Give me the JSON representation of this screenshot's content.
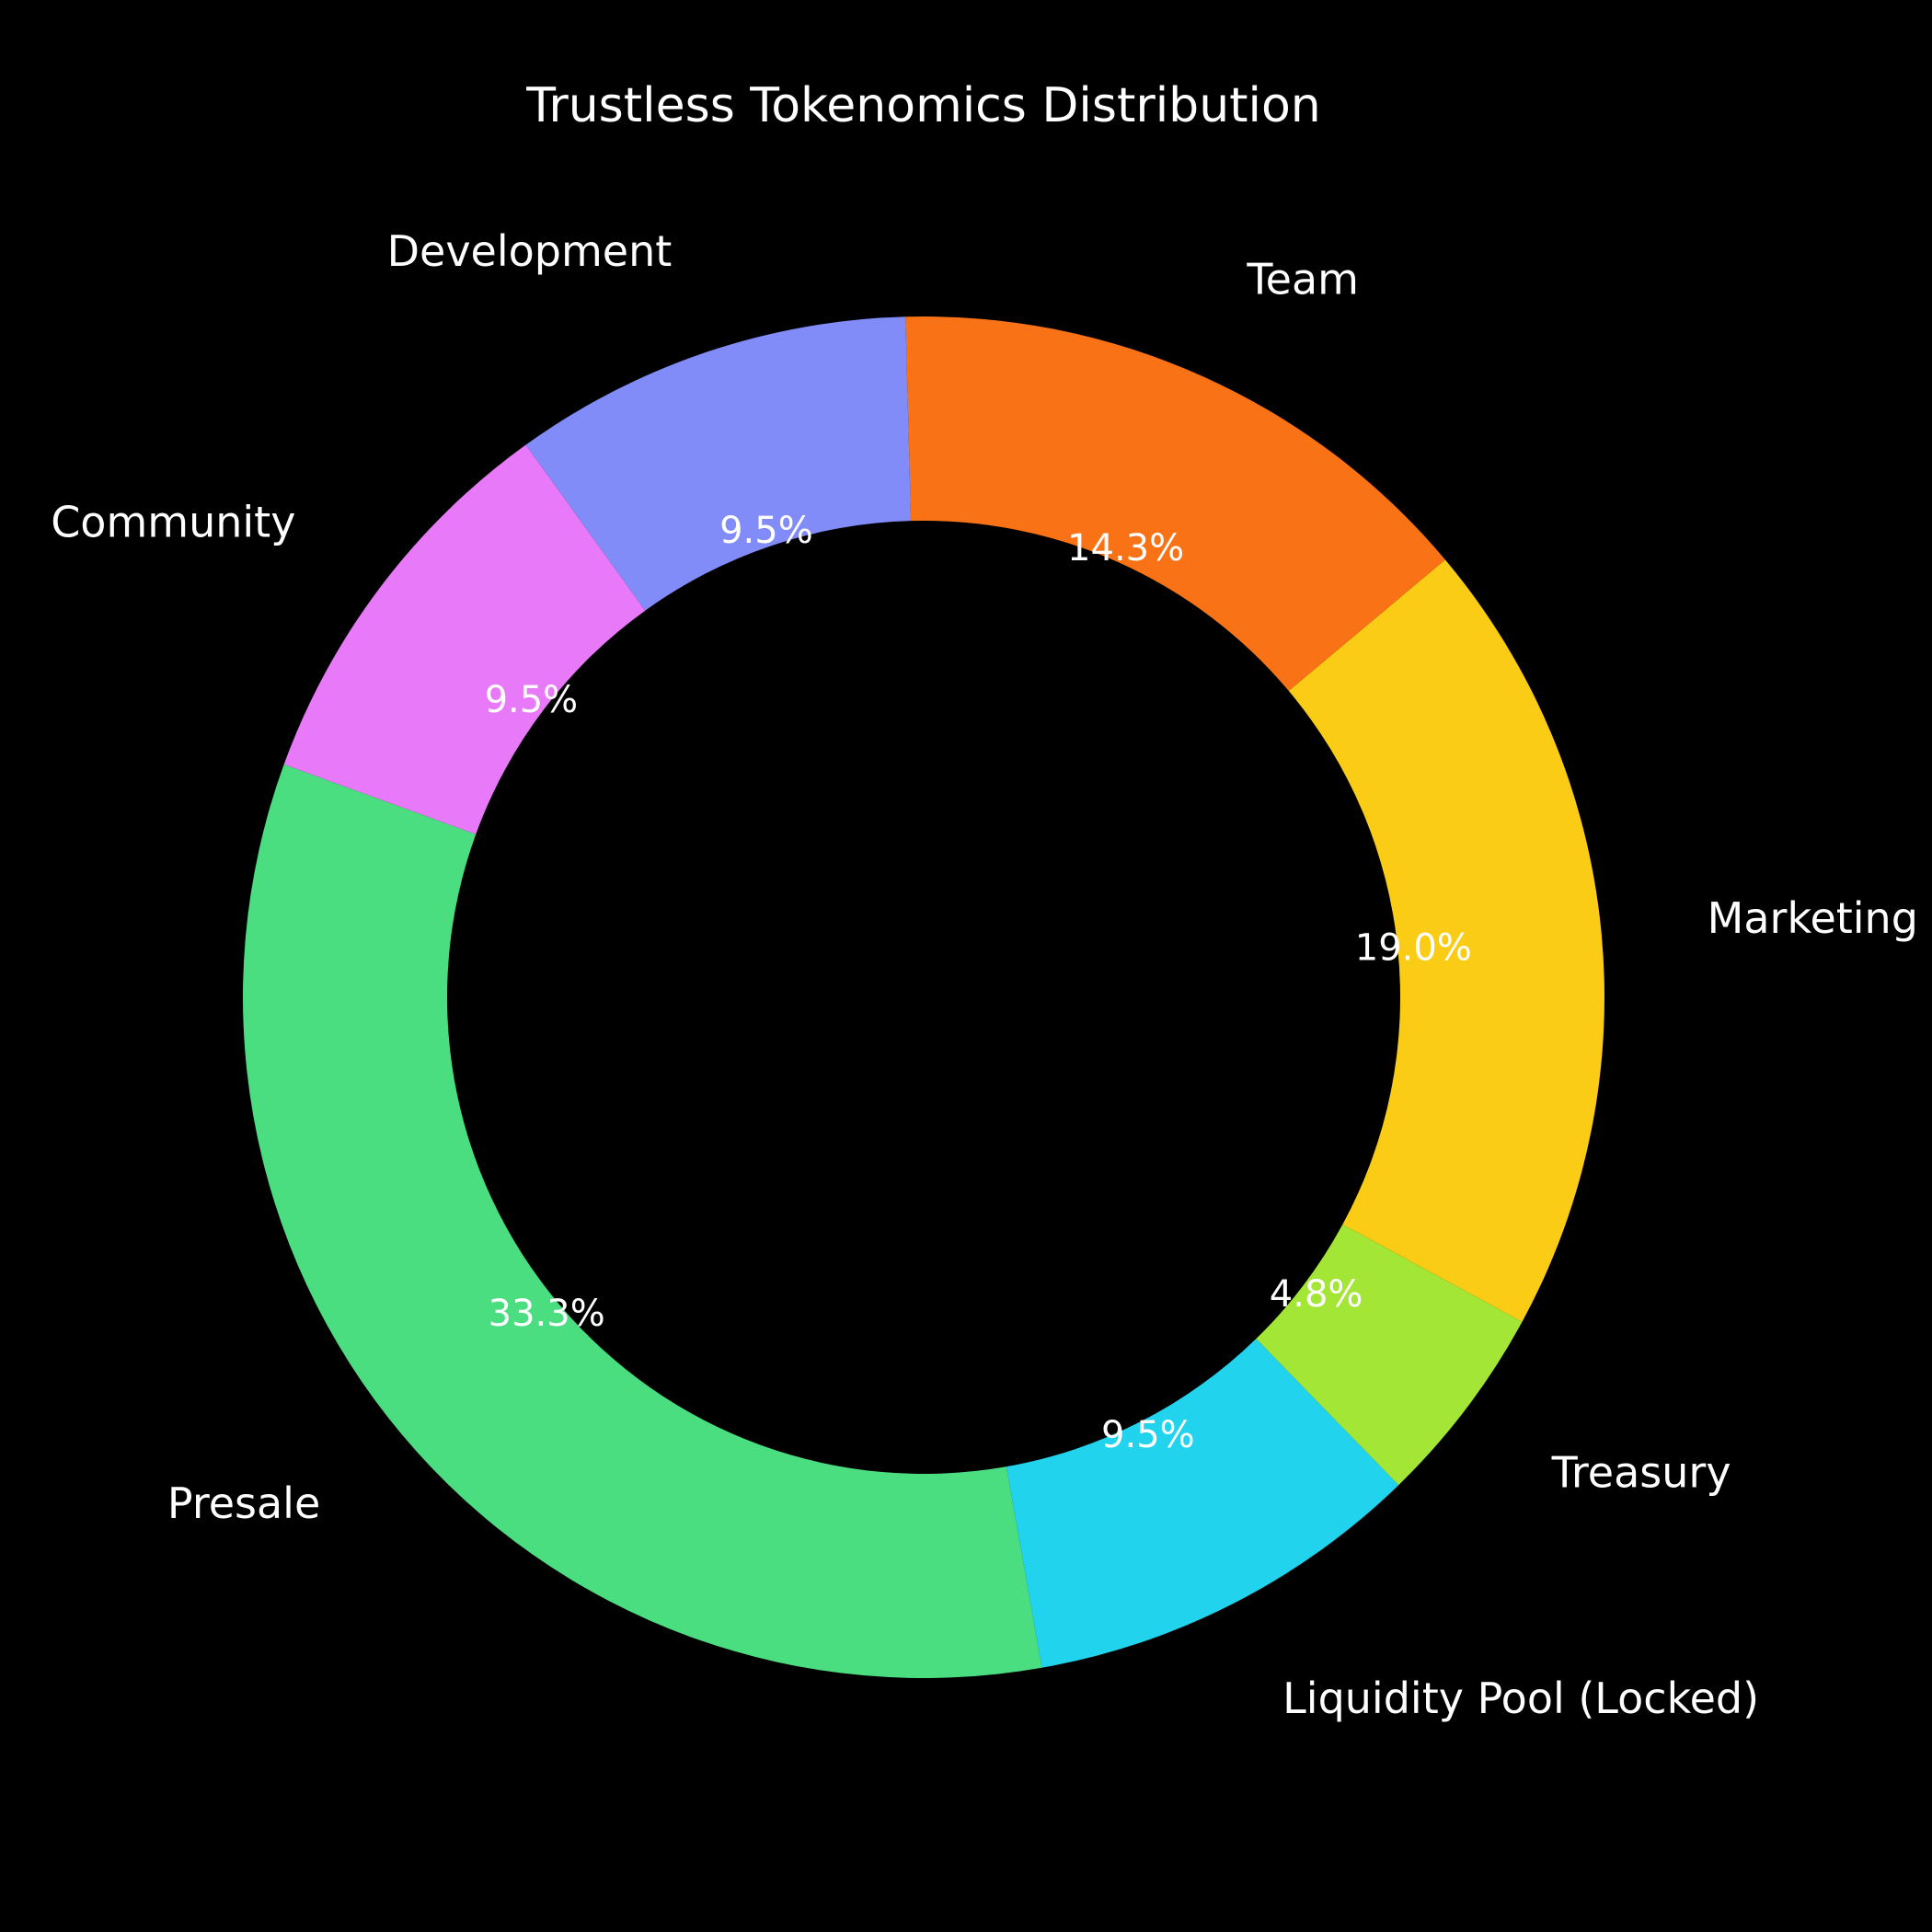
{
  "chart_data": {
    "type": "pie",
    "donut": true,
    "title": "Trustless Tokenomics Distribution",
    "start_angle_deg": 160,
    "direction": "counterclockwise",
    "slices": [
      {
        "name": "Presale",
        "value": 33.3,
        "percent_label": "33.3%",
        "color": "#4ade80"
      },
      {
        "name": "Liquidity Pool (Locked)",
        "value": 9.5,
        "percent_label": "9.5%",
        "color": "#22d3ee"
      },
      {
        "name": "Treasury",
        "value": 4.8,
        "percent_label": "4.8%",
        "color": "#a3e635"
      },
      {
        "name": "Marketing",
        "value": 19.0,
        "percent_label": "19.0%",
        "color": "#facc15"
      },
      {
        "name": "Team",
        "value": 14.3,
        "percent_label": "14.3%",
        "color": "#f97316"
      },
      {
        "name": "Development",
        "value": 9.5,
        "percent_label": "9.5%",
        "color": "#818cf8"
      },
      {
        "name": "Community",
        "value": 9.5,
        "percent_label": "9.5%",
        "color": "#e879f9"
      }
    ],
    "background": "#000000",
    "text_color": "#ffffff"
  }
}
